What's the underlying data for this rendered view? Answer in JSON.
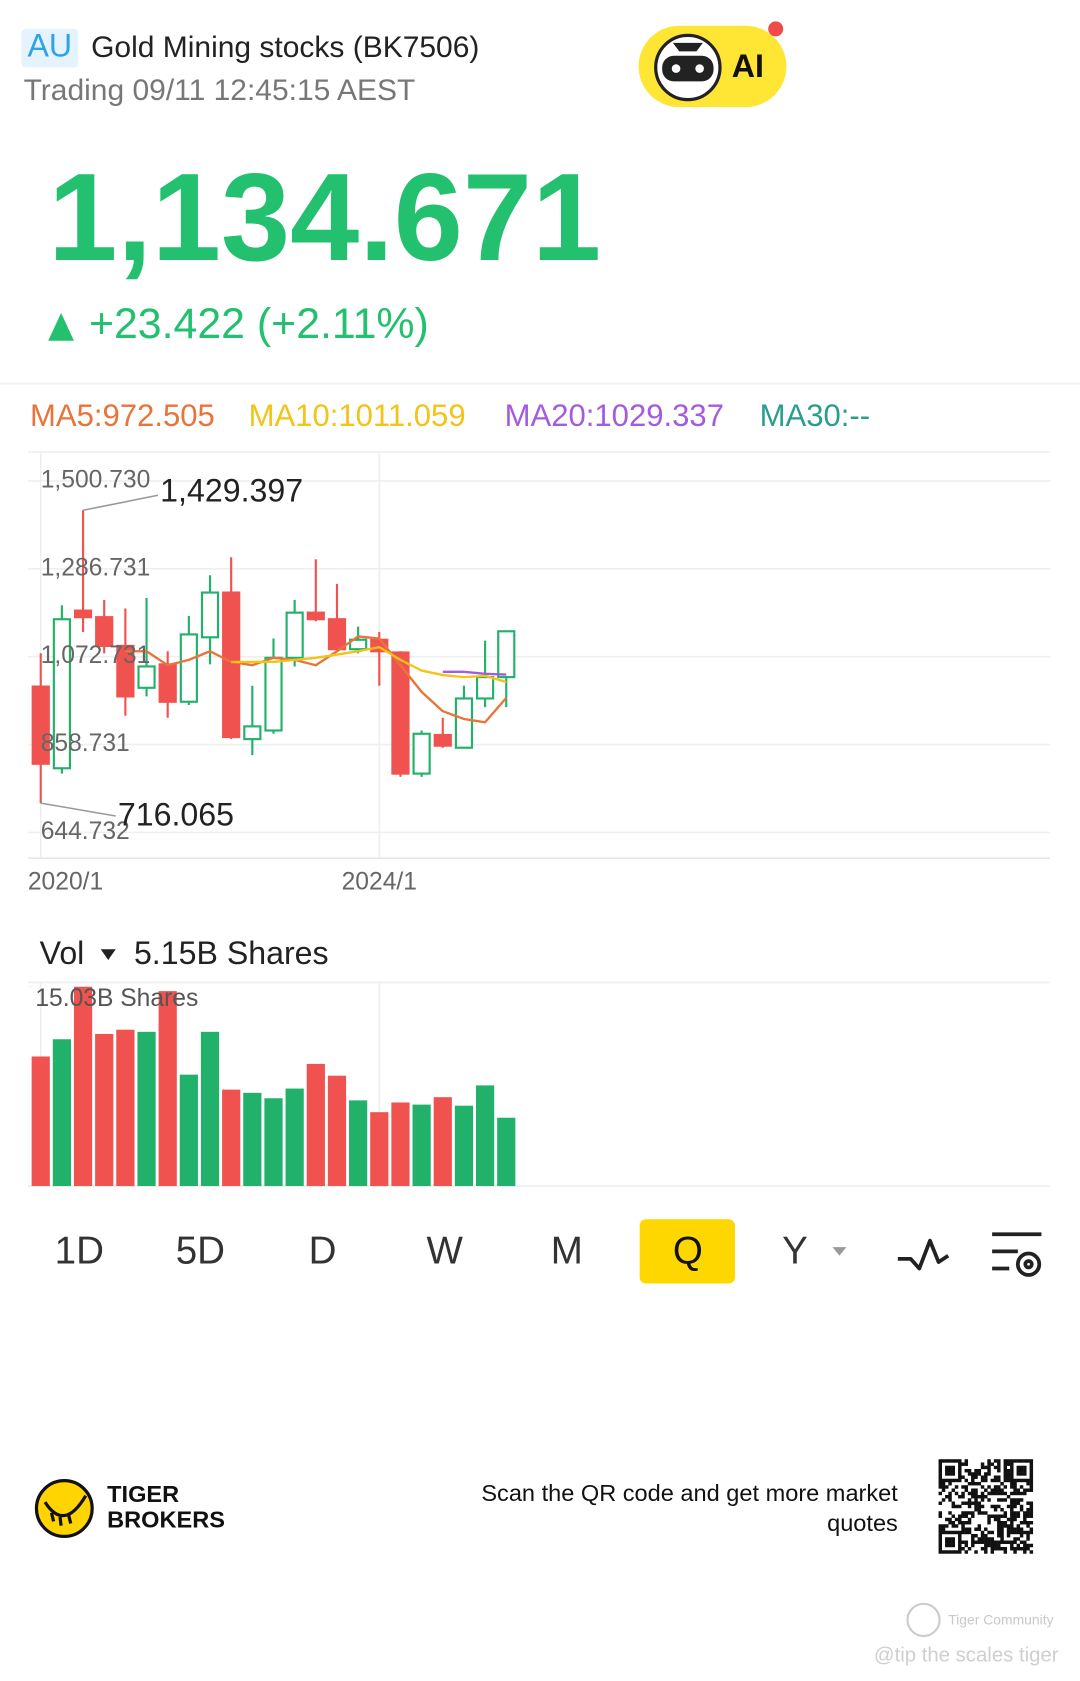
{
  "header": {
    "market": "AU",
    "title": "Gold Mining stocks (BK7506)",
    "status": "Trading 09/11 12:45:15 AEST",
    "ai": "AI"
  },
  "quote": {
    "price": "1,134.671",
    "change": "+23.422 (+2.11%)"
  },
  "indicators": [
    "MA5:972.505",
    "MA10:1011.059",
    "MA20:1029.337",
    "MA30:--"
  ],
  "chart_data": [
    {
      "type": "candlestick",
      "categories": [
        "2020/1",
        null,
        null,
        null,
        null,
        null,
        null,
        null,
        null,
        null,
        null,
        null,
        null,
        null,
        null,
        null,
        "2024/1",
        null,
        null,
        null,
        null,
        null,
        null
      ],
      "open": [
        1000,
        801,
        1185,
        1169,
        1099,
        997,
        1054,
        963,
        1120,
        1229,
        872,
        893,
        1070,
        1180,
        1164,
        1091,
        1114,
        1083,
        788,
        882,
        851,
        971,
        1023
      ],
      "high": [
        1081,
        1198,
        1429.397,
        1211,
        1190,
        1216,
        1086,
        1172,
        1271,
        1315,
        1002,
        1117,
        1211,
        1310,
        1250,
        1146,
        1133,
        1086,
        893,
        924,
        1002,
        1112,
        1134.671
      ],
      "low": [
        716.065,
        788,
        1133,
        1081,
        929,
        976,
        924,
        955,
        1054,
        872,
        833,
        885,
        1049,
        1159,
        1086,
        1081,
        1002,
        780,
        780,
        851,
        851,
        950,
        950
      ],
      "close": [
        812,
        1164,
        1169,
        1099,
        976,
        1049,
        963,
        1127,
        1229,
        877,
        903,
        1070,
        1180,
        1164,
        1091,
        1114,
        1086,
        788,
        885,
        856,
        971,
        1023,
        1134.671
      ],
      "up_color": "#22b16a",
      "down_color": "#f0524f",
      "max_label": "1,429.397",
      "min_label": "716.065",
      "ylim": [
        582,
        1571
      ],
      "yticks": [
        644.732,
        858.731,
        {
          "value": 1072.731,
          "label": "1,072.731"
        },
        {
          "value": 1286.731,
          "label": "1,286.731"
        },
        {
          "value": 1500.73,
          "label": "1,500.730"
        }
      ],
      "series": [
        {
          "name": "MA5",
          "color": "#e8743b",
          "values": [
            null,
            null,
            null,
            null,
            1086,
            1086,
            1052,
            1065,
            1086,
            1060,
            1052,
            1070,
            1065,
            1052,
            1086,
            1122,
            1117,
            1052,
            987,
            940,
            921,
            913,
            972.505
          ]
        },
        {
          "name": "MA10",
          "color": "#f2c418",
          "values": [
            null,
            null,
            null,
            null,
            null,
            null,
            null,
            null,
            null,
            1060,
            1060,
            1060,
            1065,
            1070,
            1078,
            1086,
            1096,
            1065,
            1039,
            1028,
            1023,
            1026,
            1011.059
          ]
        },
        {
          "name": "MA20",
          "color": "#a35be0",
          "values": [
            null,
            null,
            null,
            null,
            null,
            null,
            null,
            null,
            null,
            null,
            null,
            null,
            null,
            null,
            null,
            null,
            null,
            null,
            null,
            1036,
            1036,
            1031,
            1029.337
          ]
        },
        {
          "name": "MA30",
          "color": "#2a9d8f",
          "values": [
            null,
            null,
            null,
            null,
            null,
            null,
            null,
            null,
            null,
            null,
            null,
            null,
            null,
            null,
            null,
            null,
            null,
            null,
            null,
            null,
            null,
            null,
            null
          ]
        }
      ]
    },
    {
      "type": "bar",
      "title": "Vol",
      "subtitle": "5.15B Shares",
      "categories": [
        "2020/1",
        null,
        null,
        null,
        null,
        null,
        null,
        null,
        null,
        null,
        null,
        null,
        null,
        null,
        null,
        null,
        "2024/1",
        null,
        null,
        null,
        null,
        null,
        null
      ],
      "values": [
        9.77,
        11.07,
        15.03,
        11.47,
        11.79,
        11.63,
        14.7,
        8.4,
        11.63,
        7.27,
        7.03,
        6.62,
        7.35,
        9.21,
        8.32,
        6.46,
        5.57,
        6.3,
        6.14,
        6.7,
        6.06,
        7.59,
        5.15
      ],
      "ylim": [
        0,
        15.03
      ],
      "yticks": [
        {
          "value": 15.03,
          "label": "15.03B Shares"
        }
      ]
    }
  ],
  "tabs": [
    "1D",
    "5D",
    "D",
    "W",
    "M",
    "Q",
    "Y"
  ],
  "selected_tab": "Q",
  "footer": {
    "brand": [
      "TIGER",
      "BROKERS"
    ],
    "qr_text": [
      "Scan the QR code and get more market",
      "quotes"
    ]
  },
  "watermark": [
    "Tiger Community",
    "@tip the scales tiger"
  ]
}
